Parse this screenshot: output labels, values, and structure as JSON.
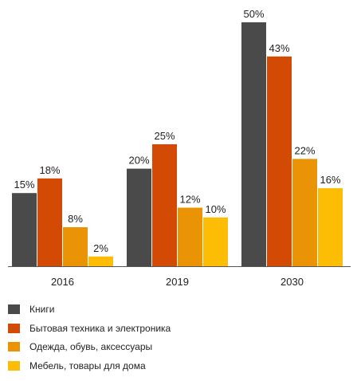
{
  "chart_data": {
    "type": "bar",
    "categories": [
      "2016",
      "2019",
      "2030"
    ],
    "series": [
      {
        "name": "Книги",
        "values": [
          15,
          20,
          50
        ],
        "labels": [
          "15%",
          "20%",
          "50%"
        ],
        "color": "#4a4a4a"
      },
      {
        "name": "Бытовая техника и электроника",
        "values": [
          18,
          25,
          43
        ],
        "labels": [
          "18%",
          "25%",
          "43%"
        ],
        "color": "#d24a04"
      },
      {
        "name": "Одежда, обувь, аксессуары",
        "values": [
          8,
          12,
          22
        ],
        "labels": [
          "8%",
          "12%",
          "22%"
        ],
        "color": "#ea9304"
      },
      {
        "name": "Мебель, товары для дома",
        "values": [
          2,
          10,
          16
        ],
        "labels": [
          "2%",
          "10%",
          "16%"
        ],
        "color": "#fcbd04"
      }
    ],
    "title": "",
    "xlabel": "",
    "ylabel": "",
    "ylim": [
      0,
      50
    ],
    "grid": false,
    "legend_position": "bottom-left"
  }
}
